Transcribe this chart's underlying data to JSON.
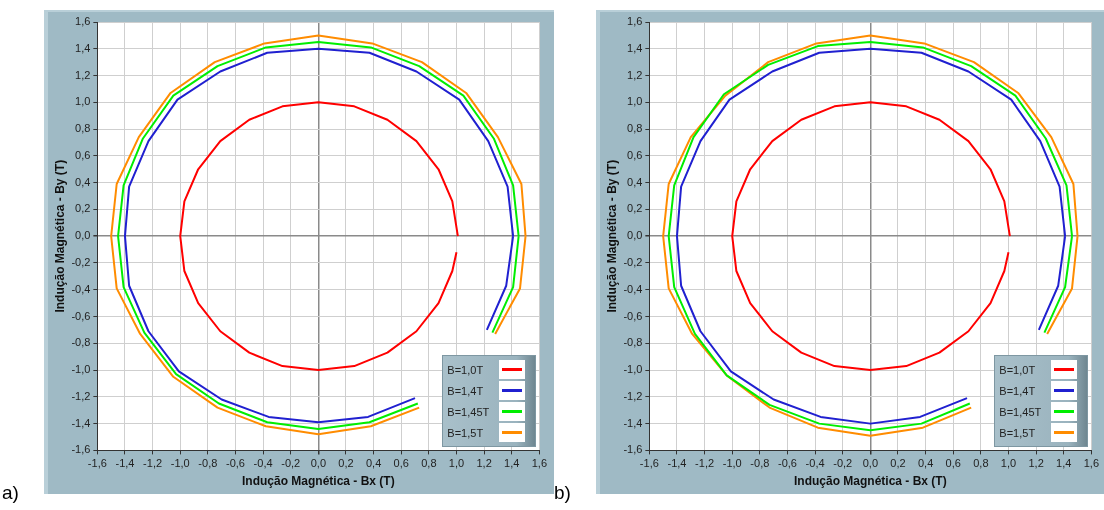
{
  "chart_data": [
    {
      "type": "line",
      "xlabel": "Indução Magnética - Bx (T)",
      "ylabel": "Indução Magnética - By (T)",
      "annotations": [
        "a)"
      ],
      "legend": "bottom right",
      "grid": true,
      "xlim": [
        -1.6,
        1.6
      ],
      "ylim": [
        -1.6,
        1.6
      ],
      "xticks": [
        {
          "value": -1.6,
          "label": "-1,6"
        },
        {
          "value": -1.4,
          "label": "-1,4"
        },
        {
          "value": -1.2,
          "label": "-1,2"
        },
        {
          "value": -1.0,
          "label": "-1,0"
        },
        {
          "value": -0.8,
          "label": "-0,8"
        },
        {
          "value": -0.6,
          "label": "-0,6"
        },
        {
          "value": -0.4,
          "label": "-0,4"
        },
        {
          "value": -0.2,
          "label": "-0,2"
        },
        {
          "value": 0,
          "label": "0,0"
        },
        {
          "value": 0.2,
          "label": "0,2"
        },
        {
          "value": 0.4,
          "label": "0,4"
        },
        {
          "value": 0.6,
          "label": "0,6"
        },
        {
          "value": 0.8,
          "label": "0,8"
        },
        {
          "value": 1.0,
          "label": "1,0"
        },
        {
          "value": 1.2,
          "label": "1,2"
        },
        {
          "value": 1.4,
          "label": "1,4"
        },
        {
          "value": 1.6,
          "label": "1,6"
        }
      ],
      "yticks": [
        {
          "value": -1.6,
          "label": "-1,6"
        },
        {
          "value": -1.4,
          "label": "-1,4"
        },
        {
          "value": -1.2,
          "label": "-1,2"
        },
        {
          "value": -1.0,
          "label": "-1,0"
        },
        {
          "value": -0.8,
          "label": "-0,8"
        },
        {
          "value": -0.6,
          "label": "-0,6"
        },
        {
          "value": -0.4,
          "label": "-0,4"
        },
        {
          "value": -0.2,
          "label": "-0,2"
        },
        {
          "value": 0,
          "label": "0,0"
        },
        {
          "value": 0.2,
          "label": "0,2"
        },
        {
          "value": 0.4,
          "label": "0,4"
        },
        {
          "value": 0.6,
          "label": "0,6"
        },
        {
          "value": 0.8,
          "label": "0,8"
        },
        {
          "value": 1.0,
          "label": "1,0"
        },
        {
          "value": 1.2,
          "label": "1,2"
        },
        {
          "value": 1.4,
          "label": "1,4"
        },
        {
          "value": 1.6,
          "label": "1,6"
        }
      ],
      "series": [
        {
          "name": "B=1,0T",
          "color": "#ff0000",
          "x": [
            1.01,
            0.97,
            0.87,
            0.71,
            0.5,
            0.26,
            0,
            -0.26,
            -0.5,
            -0.71,
            -0.87,
            -0.97,
            -1.0,
            -0.97,
            -0.87,
            -0.71,
            -0.5,
            -0.26,
            0,
            0.26,
            0.5,
            0.71,
            0.87,
            0.97,
            1.0
          ],
          "values": [
            0,
            0.26,
            0.5,
            0.71,
            0.87,
            0.97,
            1.0,
            0.97,
            0.87,
            0.71,
            0.5,
            0.26,
            0,
            -0.26,
            -0.5,
            -0.71,
            -0.87,
            -0.97,
            -1.0,
            -0.97,
            -0.87,
            -0.71,
            -0.5,
            -0.26,
            -0.12
          ]
        },
        {
          "name": "B=1,4T",
          "color": "#2020d0",
          "x": [
            1.41,
            1.37,
            1.23,
            1.02,
            0.71,
            0.37,
            0,
            -0.37,
            -0.71,
            -1.02,
            -1.23,
            -1.37,
            -1.4,
            -1.37,
            -1.23,
            -1.01,
            -0.7,
            -0.36,
            0,
            0.36,
            0.7,
            1.0,
            1.22,
            1.36,
            1.41
          ],
          "values": [
            0,
            0.37,
            0.71,
            1.02,
            1.23,
            1.37,
            1.4,
            1.37,
            1.23,
            1.02,
            0.71,
            0.37,
            0,
            -0.37,
            -0.71,
            -1.01,
            -1.22,
            -1.35,
            -1.39,
            -1.35,
            -1.21,
            null,
            -0.7,
            -0.37,
            0
          ]
        },
        {
          "name": "B=1,45T",
          "color": "#00ee00",
          "x": [
            1.45,
            1.41,
            1.27,
            1.05,
            0.73,
            0.38,
            0,
            -0.38,
            -0.73,
            -1.05,
            -1.27,
            -1.41,
            -1.45,
            -1.41,
            -1.26,
            -1.03,
            -0.72,
            -0.37,
            0,
            0.37,
            0.72,
            1.03,
            1.26,
            1.41,
            1.45
          ],
          "values": [
            0,
            0.38,
            0.73,
            1.05,
            1.27,
            1.41,
            1.45,
            1.41,
            1.27,
            1.05,
            0.73,
            0.38,
            0,
            -0.38,
            -0.72,
            -1.03,
            -1.25,
            -1.39,
            -1.44,
            -1.39,
            -1.25,
            null,
            -0.72,
            -0.38,
            0
          ]
        },
        {
          "name": "B=1,5T",
          "color": "#ff8c00",
          "x": [
            1.5,
            1.47,
            1.3,
            1.07,
            0.75,
            0.39,
            0,
            -0.39,
            -0.75,
            -1.07,
            -1.3,
            -1.46,
            -1.5,
            -1.46,
            -1.29,
            -1.05,
            -0.73,
            -0.38,
            0,
            0.38,
            0.73,
            1.05,
            1.28,
            1.46,
            1.5
          ],
          "values": [
            0,
            0.39,
            0.74,
            1.07,
            1.3,
            1.44,
            1.5,
            1.44,
            1.3,
            1.07,
            0.74,
            0.39,
            0,
            -0.39,
            -0.73,
            -1.05,
            -1.28,
            -1.42,
            -1.48,
            -1.42,
            -1.28,
            null,
            -0.73,
            -0.39,
            0
          ]
        }
      ]
    },
    {
      "type": "line",
      "xlabel": "Indução Magnética - Bx (T)",
      "ylabel": "Indução Magnética - By (T)",
      "annotations": [
        "b)"
      ],
      "legend": "bottom right",
      "grid": true,
      "xlim": [
        -1.6,
        1.6
      ],
      "ylim": [
        -1.6,
        1.6
      ],
      "xticks": [
        {
          "value": -1.6,
          "label": "-1,6"
        },
        {
          "value": -1.4,
          "label": "-1,4"
        },
        {
          "value": -1.2,
          "label": "-1,2"
        },
        {
          "value": -1.0,
          "label": "-1,0"
        },
        {
          "value": -0.8,
          "label": "-0,8"
        },
        {
          "value": -0.6,
          "label": "-0,6"
        },
        {
          "value": -0.4,
          "label": "-0,4"
        },
        {
          "value": -0.2,
          "label": "-0,2"
        },
        {
          "value": 0,
          "label": "0,0"
        },
        {
          "value": 0.2,
          "label": "0,2"
        },
        {
          "value": 0.4,
          "label": "0,4"
        },
        {
          "value": 0.6,
          "label": "0,6"
        },
        {
          "value": 0.8,
          "label": "0,8"
        },
        {
          "value": 1.0,
          "label": "1,0"
        },
        {
          "value": 1.2,
          "label": "1,2"
        },
        {
          "value": 1.4,
          "label": "1,4"
        },
        {
          "value": 1.6,
          "label": "1,6"
        }
      ],
      "yticks": [
        {
          "value": -1.6,
          "label": "-1,6"
        },
        {
          "value": -1.4,
          "label": "-1,4"
        },
        {
          "value": -1.2,
          "label": "-1,2"
        },
        {
          "value": -1.0,
          "label": "-1,0"
        },
        {
          "value": -0.8,
          "label": "-0,8"
        },
        {
          "value": -0.6,
          "label": "-0,6"
        },
        {
          "value": -0.4,
          "label": "-0,4"
        },
        {
          "value": -0.2,
          "label": "-0,2"
        },
        {
          "value": 0,
          "label": "0,0"
        },
        {
          "value": 0.2,
          "label": "0,2"
        },
        {
          "value": 0.4,
          "label": "0,4"
        },
        {
          "value": 0.6,
          "label": "0,6"
        },
        {
          "value": 0.8,
          "label": "0,8"
        },
        {
          "value": 1.0,
          "label": "1,0"
        },
        {
          "value": 1.2,
          "label": "1,2"
        },
        {
          "value": 1.4,
          "label": "1,4"
        },
        {
          "value": 1.6,
          "label": "1,6"
        }
      ],
      "series": [
        {
          "name": "B=1,0T",
          "color": "#ff0000",
          "x": [
            1.01,
            0.97,
            0.87,
            0.71,
            0.5,
            0.26,
            0,
            -0.26,
            -0.5,
            -0.71,
            -0.87,
            -0.97,
            -1.0,
            -0.97,
            -0.87,
            -0.71,
            -0.5,
            -0.26,
            0,
            0.26,
            0.5,
            0.71,
            0.87,
            0.97,
            1.0
          ],
          "values": [
            0,
            0.26,
            0.5,
            0.71,
            0.87,
            0.97,
            1.0,
            0.97,
            0.87,
            0.71,
            0.5,
            0.26,
            0,
            -0.26,
            -0.5,
            -0.71,
            -0.87,
            -0.97,
            -1.0,
            -0.97,
            -0.87,
            -0.71,
            -0.5,
            -0.26,
            -0.12
          ]
        },
        {
          "name": "B=1,4T",
          "color": "#2020d0",
          "x": [
            1.41,
            1.37,
            1.23,
            1.02,
            0.71,
            0.37,
            0,
            -0.37,
            -0.71,
            -1.02,
            -1.23,
            -1.37,
            -1.4,
            -1.37,
            -1.23,
            -1.01,
            -0.7,
            -0.36,
            0,
            0.36,
            0.7,
            1.0,
            1.22,
            1.36,
            1.41
          ],
          "values": [
            0,
            0.37,
            0.71,
            1.02,
            1.23,
            1.37,
            1.4,
            1.37,
            1.23,
            1.02,
            0.71,
            0.37,
            0,
            -0.37,
            -0.71,
            -1.01,
            -1.22,
            -1.35,
            -1.4,
            -1.35,
            -1.21,
            null,
            -0.7,
            -0.37,
            0
          ]
        },
        {
          "name": "B=1,45T",
          "color": "#00ee00",
          "x": [
            1.46,
            1.42,
            1.27,
            1.05,
            0.73,
            0.38,
            0,
            -0.38,
            -0.74,
            -1.06,
            -1.28,
            -1.42,
            -1.46,
            -1.42,
            -1.27,
            -1.04,
            -0.73,
            -0.37,
            0,
            0.37,
            0.72,
            1.03,
            1.26,
            1.41,
            1.46
          ],
          "values": [
            0,
            0.38,
            0.73,
            1.05,
            1.27,
            1.41,
            1.45,
            1.42,
            1.28,
            1.06,
            0.74,
            0.38,
            0,
            -0.38,
            -0.73,
            -1.04,
            -1.26,
            -1.4,
            -1.45,
            -1.4,
            -1.25,
            null,
            -0.72,
            -0.38,
            0
          ]
        },
        {
          "name": "B=1,5T",
          "color": "#ff8c00",
          "x": [
            1.5,
            1.47,
            1.31,
            1.07,
            0.75,
            0.39,
            0,
            -0.39,
            -0.74,
            -1.05,
            -1.3,
            -1.46,
            -1.5,
            -1.46,
            -1.29,
            -1.04,
            -0.73,
            -0.38,
            0,
            0.38,
            0.73,
            1.05,
            1.28,
            1.46,
            1.5
          ],
          "values": [
            0,
            0.39,
            0.74,
            1.07,
            1.3,
            1.44,
            1.5,
            1.44,
            1.3,
            1.05,
            0.74,
            0.39,
            0,
            -0.39,
            -0.73,
            -1.04,
            -1.28,
            -1.43,
            -1.49,
            -1.43,
            -1.28,
            null,
            -0.73,
            -0.39,
            0
          ]
        }
      ]
    }
  ]
}
